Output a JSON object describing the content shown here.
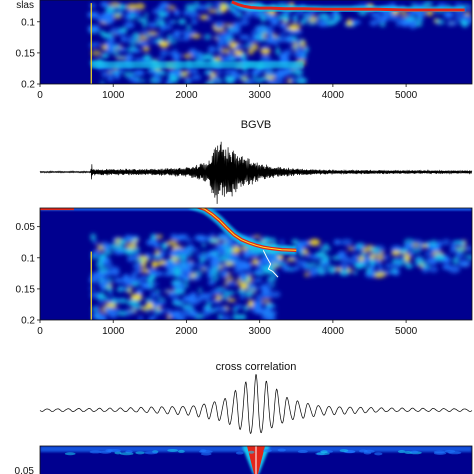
{
  "colors": {
    "background": "#00008f",
    "blob_low": "#1f78ff",
    "blob_mid": "#19c7ef",
    "blob_high": "#ffe321",
    "ridge_hot": "#e2251a",
    "ridge_core": "#ffffff",
    "trace": "#000000",
    "frame": "#111111"
  },
  "chart_data": [
    {
      "type": "heatmap",
      "title": "",
      "xlabel": "",
      "ylabel": "",
      "y_axis_top_text": "slas",
      "xlim": [
        0,
        5900
      ],
      "ylim": [
        0.2,
        0.065
      ],
      "x_ticks": [
        "0",
        "1000",
        "2000",
        "3000",
        "4000",
        "5000"
      ],
      "y_ticks": [
        "0.1",
        "0.15",
        "0.2"
      ],
      "x_tick_values": [
        0,
        1000,
        2000,
        3000,
        4000,
        5000
      ],
      "y_tick_values": [
        0.1,
        0.15,
        0.2
      ],
      "ridge": {
        "x": [
          2620,
          2700,
          2780,
          2880,
          3000,
          3150,
          3350,
          3600,
          3900,
          4200,
          4600,
          5000,
          5400,
          5800
        ],
        "y": [
          0.068,
          0.072,
          0.075,
          0.077,
          0.078,
          0.078,
          0.079,
          0.079,
          0.08,
          0.08,
          0.08,
          0.081,
          0.081,
          0.081
        ]
      },
      "onset": {
        "x": 700,
        "y_range": [
          0.07,
          0.2
        ]
      },
      "coherent_band": {
        "y": 0.17,
        "x_range": [
          700,
          3600
        ]
      }
    },
    {
      "type": "line",
      "title": "BGVB",
      "xlabel": "",
      "ylabel": "",
      "xlim": [
        0,
        5900
      ],
      "description_free": true,
      "series": [
        {
          "x": [
            0,
            690,
            705,
            720,
            1500,
            2000,
            2300,
            2400,
            2500,
            2600,
            2750,
            3000,
            3300,
            3600,
            4000,
            5000,
            5900
          ],
          "envelope": [
            0.02,
            0.02,
            0.35,
            0.1,
            0.1,
            0.15,
            0.35,
            1.0,
            0.9,
            0.8,
            0.55,
            0.3,
            0.15,
            0.1,
            0.07,
            0.06,
            0.05
          ]
        }
      ]
    },
    {
      "type": "heatmap",
      "title": "",
      "xlabel": "",
      "ylabel": "",
      "xlim": [
        0,
        5900
      ],
      "ylim": [
        0.2,
        0.02
      ],
      "x_ticks": [
        "0",
        "1000",
        "2000",
        "3000",
        "4000",
        "5000"
      ],
      "y_ticks": [
        "0.05",
        "0.1",
        "0.15",
        "0.2"
      ],
      "x_tick_values": [
        0,
        1000,
        2000,
        3000,
        4000,
        5000
      ],
      "y_tick_values": [
        0.05,
        0.1,
        0.15,
        0.2
      ],
      "ridge": {
        "x": [
          2250,
          2350,
          2450,
          2550,
          2650,
          2750,
          2850,
          2950,
          3050,
          3150,
          3300,
          3500
        ],
        "y": [
          0.022,
          0.03,
          0.04,
          0.052,
          0.063,
          0.071,
          0.076,
          0.08,
          0.083,
          0.085,
          0.087,
          0.088
        ]
      },
      "hook": {
        "x": [
          2250,
          2150,
          2050
        ],
        "y": [
          0.022,
          0.018,
          0.014
        ]
      },
      "white_trace": {
        "x": [
          3050,
          3100,
          3150,
          3120,
          3180,
          3250
        ],
        "y": [
          0.088,
          0.1,
          0.11,
          0.118,
          0.122,
          0.131
        ]
      },
      "onset": {
        "x": 700,
        "y_range": [
          0.09,
          0.2
        ]
      },
      "top_band": {
        "y": 0.021,
        "x_range": [
          0,
          5900
        ]
      }
    },
    {
      "type": "line",
      "title": "cross correlation",
      "xlabel": "",
      "ylabel": "",
      "series": [
        {
          "x": [
            -1.0,
            -0.6,
            -0.3,
            -0.15,
            -0.05,
            0.0,
            0.05,
            0.15,
            0.3,
            0.6,
            1.0
          ],
          "envelope": [
            0.04,
            0.06,
            0.15,
            0.35,
            0.8,
            1.0,
            0.8,
            0.35,
            0.15,
            0.06,
            0.04
          ]
        }
      ]
    },
    {
      "type": "heatmap",
      "title": "",
      "y_ticks_partial": [
        "0.05"
      ],
      "ridge_center": 0.0
    }
  ]
}
